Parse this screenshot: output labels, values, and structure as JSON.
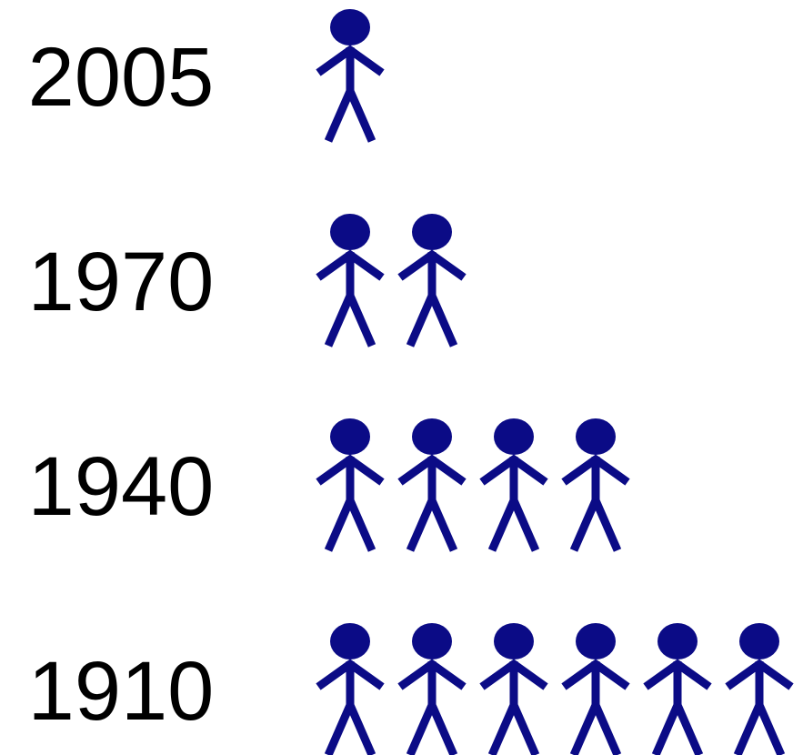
{
  "chart_data": {
    "type": "pictograph",
    "categories": [
      "2005",
      "1970",
      "1940",
      "1910"
    ],
    "values": [
      1,
      2,
      4,
      6
    ],
    "color": "#0b0b86"
  }
}
